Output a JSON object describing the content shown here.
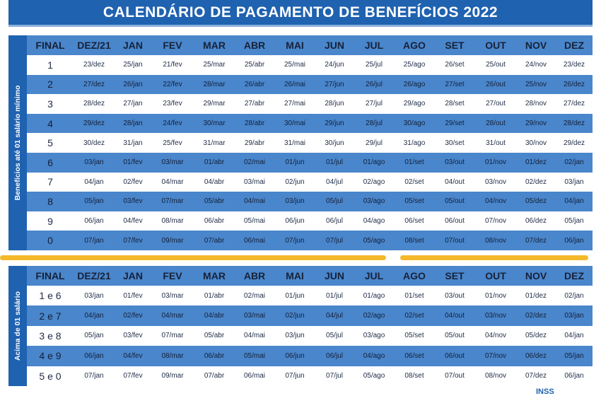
{
  "title": "CALENDÁRIO DE PAGAMENTO DE BENEFÍCIOS 2022",
  "table1": {
    "side_label": "Benefícios até 01 salário mínimo",
    "headers": [
      "FINAL",
      "DEZ/21",
      "JAN",
      "FEV",
      "MAR",
      "ABR",
      "MAI",
      "JUN",
      "JUL",
      "AGO",
      "SET",
      "OUT",
      "NOV",
      "DEZ"
    ],
    "rows": [
      [
        "1",
        "23/dez",
        "25/jan",
        "21/fev",
        "25/mar",
        "25/abr",
        "25/mai",
        "24/jun",
        "25/jul",
        "25/ago",
        "26/set",
        "25/out",
        "24/nov",
        "23/dez"
      ],
      [
        "2",
        "27/dez",
        "26/jan",
        "22/fev",
        "28/mar",
        "26/abr",
        "26/mai",
        "27/jun",
        "26/jul",
        "26/ago",
        "27/set",
        "26/out",
        "25/nov",
        "26/dez"
      ],
      [
        "3",
        "28/dez",
        "27/jan",
        "23/fev",
        "29/mar",
        "27/abr",
        "27/mai",
        "28/jun",
        "27/jul",
        "29/ago",
        "28/set",
        "27/out",
        "28/nov",
        "27/dez"
      ],
      [
        "4",
        "29/dez",
        "28/jan",
        "24/fev",
        "30/mar",
        "28/abr",
        "30/mai",
        "29/jun",
        "28/jul",
        "30/ago",
        "29/set",
        "28/out",
        "29/nov",
        "28/dez"
      ],
      [
        "5",
        "30/dez",
        "31/jan",
        "25/fev",
        "31/mar",
        "29/abr",
        "31/mai",
        "30/jun",
        "29/jul",
        "31/ago",
        "30/set",
        "31/out",
        "30/nov",
        "29/dez"
      ],
      [
        "6",
        "03/jan",
        "01/fev",
        "03/mar",
        "01/abr",
        "02/mai",
        "01/jun",
        "01/jul",
        "01/ago",
        "01/set",
        "03/out",
        "01/nov",
        "01/dez",
        "02/jan"
      ],
      [
        "7",
        "04/jan",
        "02/fev",
        "04/mar",
        "04/abr",
        "03/mai",
        "02/jun",
        "04/jul",
        "02/ago",
        "02/set",
        "04/out",
        "03/nov",
        "02/dez",
        "03/jan"
      ],
      [
        "8",
        "05/jan",
        "03/fev",
        "07/mar",
        "05/abr",
        "04/mai",
        "03/jun",
        "05/jul",
        "03/ago",
        "05/set",
        "05/out",
        "04/nov",
        "05/dez",
        "04/jan"
      ],
      [
        "9",
        "06/jan",
        "04/fev",
        "08/mar",
        "06/abr",
        "05/mai",
        "06/jun",
        "06/jul",
        "04/ago",
        "06/set",
        "06/out",
        "07/nov",
        "06/dez",
        "05/jan"
      ],
      [
        "0",
        "07/jan",
        "07/fev",
        "09/mar",
        "07/abr",
        "06/mai",
        "07/jun",
        "07/jul",
        "05/ago",
        "08/set",
        "07/out",
        "08/nov",
        "07/dez",
        "06/jan"
      ]
    ]
  },
  "table2": {
    "side_label": "Acima de 01 salário",
    "headers": [
      "FINAL",
      "DEZ/21",
      "JAN",
      "FEV",
      "MAR",
      "ABR",
      "MAI",
      "JUN",
      "JUL",
      "AGO",
      "SET",
      "OUT",
      "NOV",
      "DEZ"
    ],
    "rows": [
      [
        "1 e 6",
        "03/jan",
        "01/fev",
        "03/mar",
        "01/abr",
        "02/mai",
        "01/jun",
        "01/jul",
        "01/ago",
        "01/set",
        "03/out",
        "01/nov",
        "01/dez",
        "02/jan"
      ],
      [
        "2 e 7",
        "04/jan",
        "02/fev",
        "04/mar",
        "04/abr",
        "03/mai",
        "02/jun",
        "04/jul",
        "02/ago",
        "02/set",
        "04/out",
        "03/nov",
        "02/dez",
        "03/jan"
      ],
      [
        "3 e 8",
        "05/jan",
        "03/fev",
        "07/mar",
        "05/abr",
        "04/mai",
        "03/jun",
        "05/jul",
        "03/ago",
        "05/set",
        "05/out",
        "04/nov",
        "05/dez",
        "04/jan"
      ],
      [
        "4 e 9",
        "06/jan",
        "04/fev",
        "08/mar",
        "06/abr",
        "05/mai",
        "06/jun",
        "06/jul",
        "04/ago",
        "06/set",
        "06/out",
        "07/nov",
        "06/dez",
        "05/jan"
      ],
      [
        "5 e 0",
        "07/jan",
        "07/fev",
        "09/mar",
        "07/abr",
        "06/mai",
        "07/jun",
        "07/jul",
        "05/ago",
        "08/set",
        "07/out",
        "08/nov",
        "07/dez",
        "06/jan"
      ]
    ]
  },
  "footer_logo_text": "INSS",
  "colors": {
    "header_blue": "#1f62b0",
    "row_blue": "#4a86cb",
    "divider": "#f4b92a"
  }
}
